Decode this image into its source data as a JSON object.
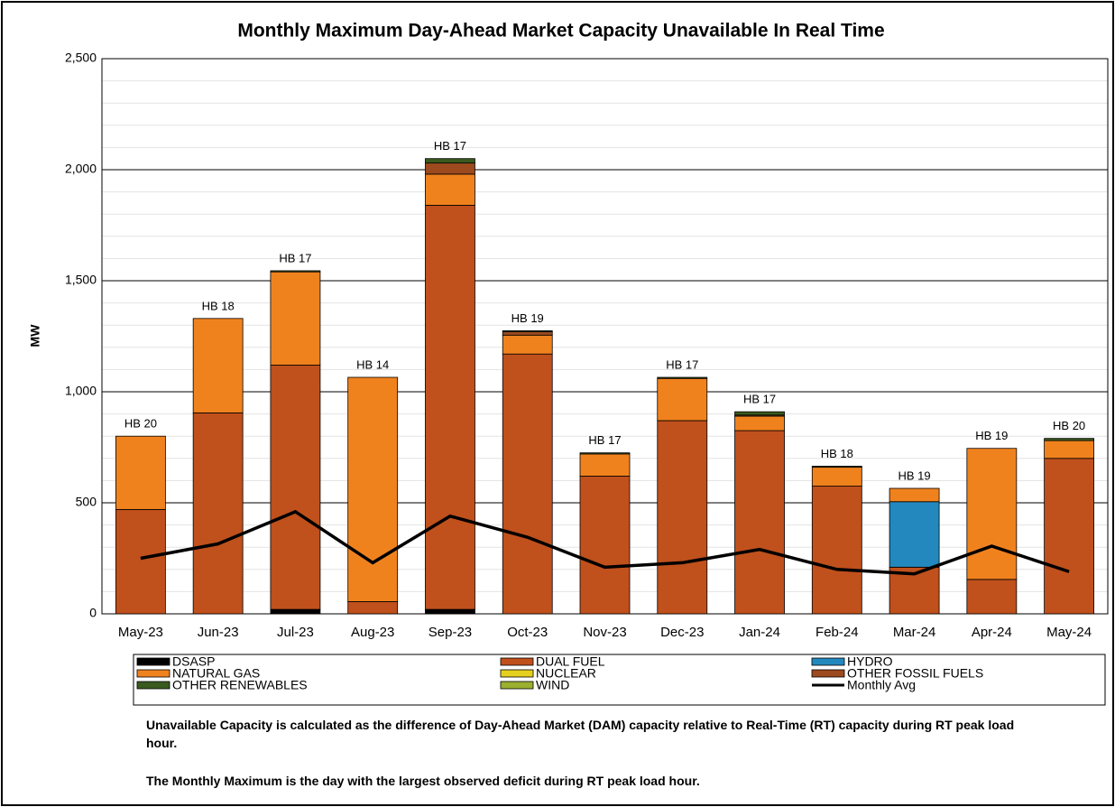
{
  "chart_data": {
    "type": "bar",
    "stacked": true,
    "title": "Monthly Maximum Day-Ahead Market Capacity Unavailable In Real Time",
    "y_label": "MW",
    "categories": [
      "May-23",
      "Jun-23",
      "Jul-23",
      "Aug-23",
      "Sep-23",
      "Oct-23",
      "Nov-23",
      "Dec-23",
      "Jan-24",
      "Feb-24",
      "Mar-24",
      "Apr-24",
      "May-24"
    ],
    "annotations": [
      "HB 20",
      "HB 18",
      "HB 17",
      "HB 14",
      "HB 17",
      "HB 19",
      "HB 17",
      "HB 17",
      "HB 17",
      "HB 18",
      "HB 19",
      "HB 19",
      "HB 20"
    ],
    "series": [
      {
        "name": "DSASP",
        "color": "#000000",
        "values": [
          0,
          0,
          20,
          0,
          20,
          0,
          0,
          0,
          0,
          0,
          0,
          0,
          0
        ]
      },
      {
        "name": "DUAL FUEL",
        "color": "#C0501C",
        "values": [
          470,
          905,
          1100,
          55,
          1820,
          1170,
          620,
          870,
          825,
          575,
          210,
          155,
          700
        ]
      },
      {
        "name": "HYDRO",
        "color": "#2388BE",
        "values": [
          0,
          0,
          0,
          0,
          0,
          0,
          0,
          0,
          0,
          0,
          295,
          0,
          0
        ]
      },
      {
        "name": "NATURAL GAS",
        "color": "#F0821E",
        "values": [
          330,
          425,
          420,
          1010,
          140,
          85,
          100,
          190,
          65,
          85,
          60,
          590,
          80
        ]
      },
      {
        "name": "NUCLEAR",
        "color": "#E6D01E",
        "values": [
          0,
          0,
          0,
          0,
          0,
          0,
          0,
          0,
          0,
          0,
          0,
          0,
          0
        ]
      },
      {
        "name": "OTHER FOSSIL FUELS",
        "color": "#9C4A1E",
        "values": [
          0,
          0,
          0,
          0,
          50,
          15,
          0,
          0,
          5,
          0,
          0,
          0,
          0
        ]
      },
      {
        "name": "OTHER RENEWABLES",
        "color": "#3A5A1E",
        "values": [
          0,
          0,
          5,
          0,
          20,
          5,
          5,
          5,
          15,
          5,
          0,
          0,
          10
        ]
      },
      {
        "name": "WIND",
        "color": "#9BB030",
        "values": [
          0,
          0,
          0,
          0,
          0,
          0,
          0,
          0,
          0,
          0,
          0,
          0,
          0
        ]
      },
      {
        "name": "Monthly Avg",
        "type": "line",
        "color": "#000000",
        "values": [
          250,
          315,
          460,
          230,
          440,
          345,
          210,
          230,
          290,
          200,
          180,
          305,
          190
        ]
      }
    ],
    "ylim": [
      0,
      2500
    ],
    "yticks": [
      0,
      500,
      {
        "value": 1000,
        "label": "1,000"
      },
      {
        "value": 1500,
        "label": "1,500"
      },
      {
        "value": 2000,
        "label": "2,000"
      },
      {
        "value": 2500,
        "label": "2,500"
      }
    ],
    "grid": true,
    "legend": "bottom",
    "notes": [
      "Unavailable Capacity is calculated as the difference of Day-Ahead Market (DAM) capacity relative to Real-Time (RT) capacity during RT peak load hour.",
      "The Monthly Maximum is the day with the largest observed deficit during RT peak load hour."
    ]
  }
}
